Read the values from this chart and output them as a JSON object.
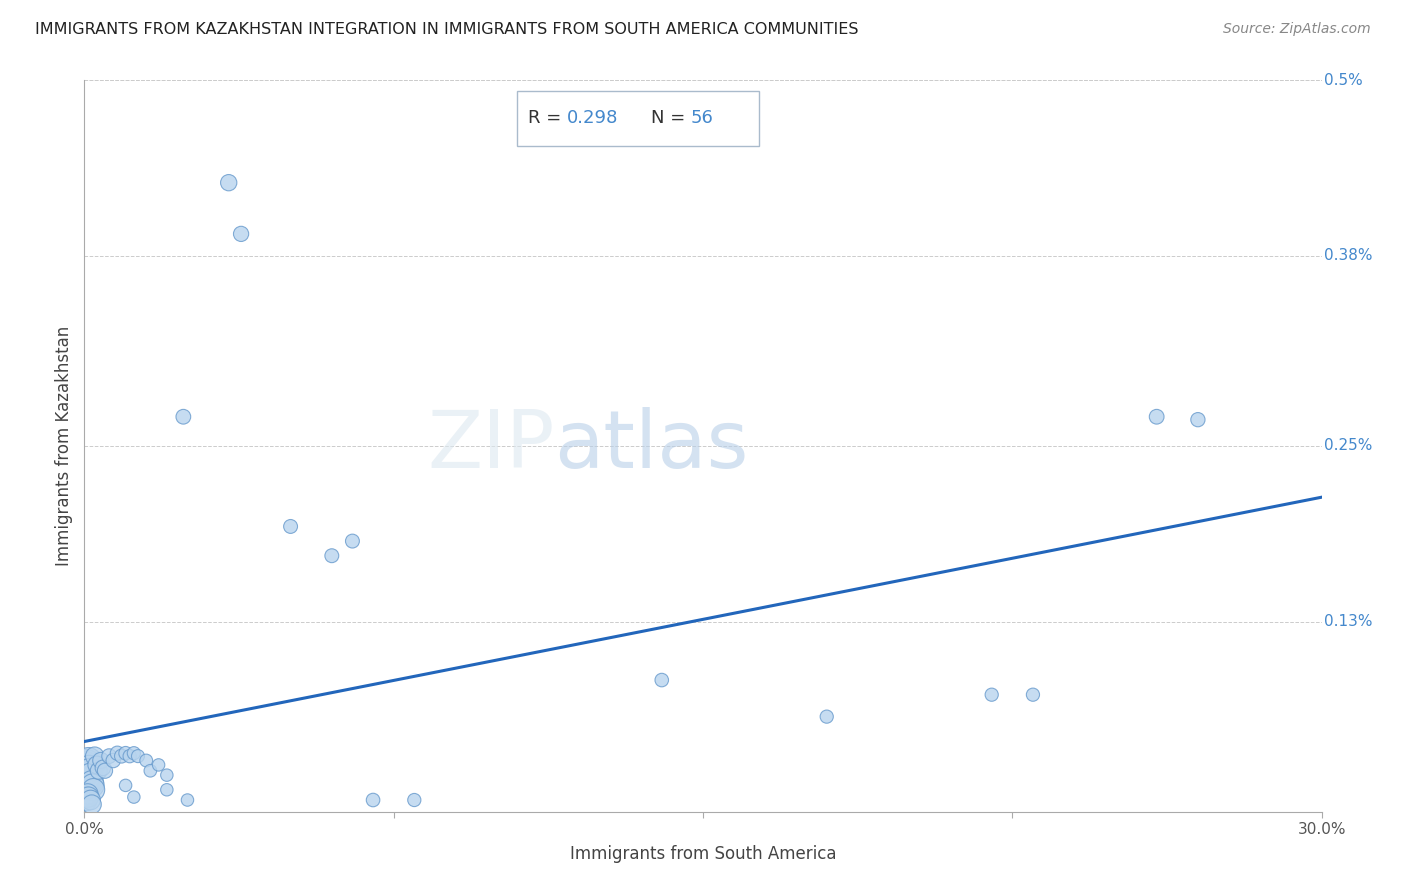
{
  "title": "IMMIGRANTS FROM KAZAKHSTAN INTEGRATION IN IMMIGRANTS FROM SOUTH AMERICA COMMUNITIES",
  "source": "Source: ZipAtlas.com",
  "xlabel": "Immigrants from South America",
  "ylabel": "Immigrants from Kazakhstan",
  "R": 0.298,
  "N": 56,
  "xlim": [
    0,
    0.3
  ],
  "ylim": [
    0,
    0.005
  ],
  "ytick_labels_right": [
    "0.5%",
    "0.38%",
    "0.25%",
    "0.13%"
  ],
  "ytick_vals_right": [
    0.005,
    0.0038,
    0.0025,
    0.0013
  ],
  "scatter_color": "#b8d4ee",
  "scatter_edge_color": "#6699cc",
  "line_color": "#2266bb",
  "background_color": "#ffffff",
  "grid_color": "#cccccc",
  "annotation_box_color": "#ffffff",
  "annotation_border_color": "#aabbcc",
  "R_color": "#4488cc",
  "watermark_color": "#dce8f2",
  "scatter_data": [
    [
      0.0002,
      0.0003,
      220
    ],
    [
      0.0003,
      0.00025,
      190
    ],
    [
      0.0004,
      0.00032,
      200
    ],
    [
      0.0005,
      0.0002,
      170
    ],
    [
      0.0006,
      0.00018,
      160
    ],
    [
      0.0007,
      0.00028,
      150
    ],
    [
      0.0008,
      0.00022,
      145
    ],
    [
      0.001,
      0.00035,
      140
    ],
    [
      0.0012,
      0.0003,
      130
    ],
    [
      0.0013,
      0.00028,
      125
    ],
    [
      0.0015,
      0.00025,
      120
    ],
    [
      0.0018,
      0.0002,
      115
    ],
    [
      0.002,
      0.00018,
      110
    ],
    [
      0.0022,
      0.00015,
      105
    ],
    [
      0.0003,
      0.0001,
      100
    ],
    [
      0.0005,
      8e-05,
      95
    ],
    [
      0.0008,
      0.00012,
      90
    ],
    [
      0.001,
      0.0001,
      85
    ],
    [
      0.0015,
      8e-05,
      80
    ],
    [
      0.0018,
      5e-05,
      75
    ],
    [
      0.0025,
      0.00038,
      70
    ],
    [
      0.003,
      0.00032,
      65
    ],
    [
      0.0035,
      0.00028,
      60
    ],
    [
      0.004,
      0.00035,
      55
    ],
    [
      0.0045,
      0.0003,
      50
    ],
    [
      0.005,
      0.00028,
      48
    ],
    [
      0.006,
      0.00038,
      45
    ],
    [
      0.007,
      0.00035,
      43
    ],
    [
      0.008,
      0.0004,
      42
    ],
    [
      0.009,
      0.00038,
      40
    ],
    [
      0.01,
      0.0004,
      38
    ],
    [
      0.011,
      0.00038,
      37
    ],
    [
      0.012,
      0.0004,
      36
    ],
    [
      0.013,
      0.00038,
      35
    ],
    [
      0.015,
      0.00035,
      34
    ],
    [
      0.016,
      0.00028,
      33
    ],
    [
      0.018,
      0.00032,
      32
    ],
    [
      0.02,
      0.00025,
      32
    ],
    [
      0.01,
      0.00018,
      32
    ],
    [
      0.012,
      0.0001,
      32
    ],
    [
      0.02,
      0.00015,
      32
    ],
    [
      0.025,
      8e-05,
      32
    ],
    [
      0.035,
      0.0043,
      55
    ],
    [
      0.038,
      0.00395,
      48
    ],
    [
      0.05,
      0.00195,
      40
    ],
    [
      0.06,
      0.00175,
      40
    ],
    [
      0.065,
      0.00185,
      40
    ],
    [
      0.07,
      8e-05,
      38
    ],
    [
      0.08,
      8e-05,
      36
    ],
    [
      0.14,
      0.0009,
      38
    ],
    [
      0.18,
      0.00065,
      36
    ],
    [
      0.22,
      0.0008,
      36
    ],
    [
      0.23,
      0.0008,
      36
    ],
    [
      0.26,
      0.0027,
      45
    ],
    [
      0.27,
      0.00268,
      42
    ],
    [
      0.024,
      0.0027,
      45
    ]
  ]
}
